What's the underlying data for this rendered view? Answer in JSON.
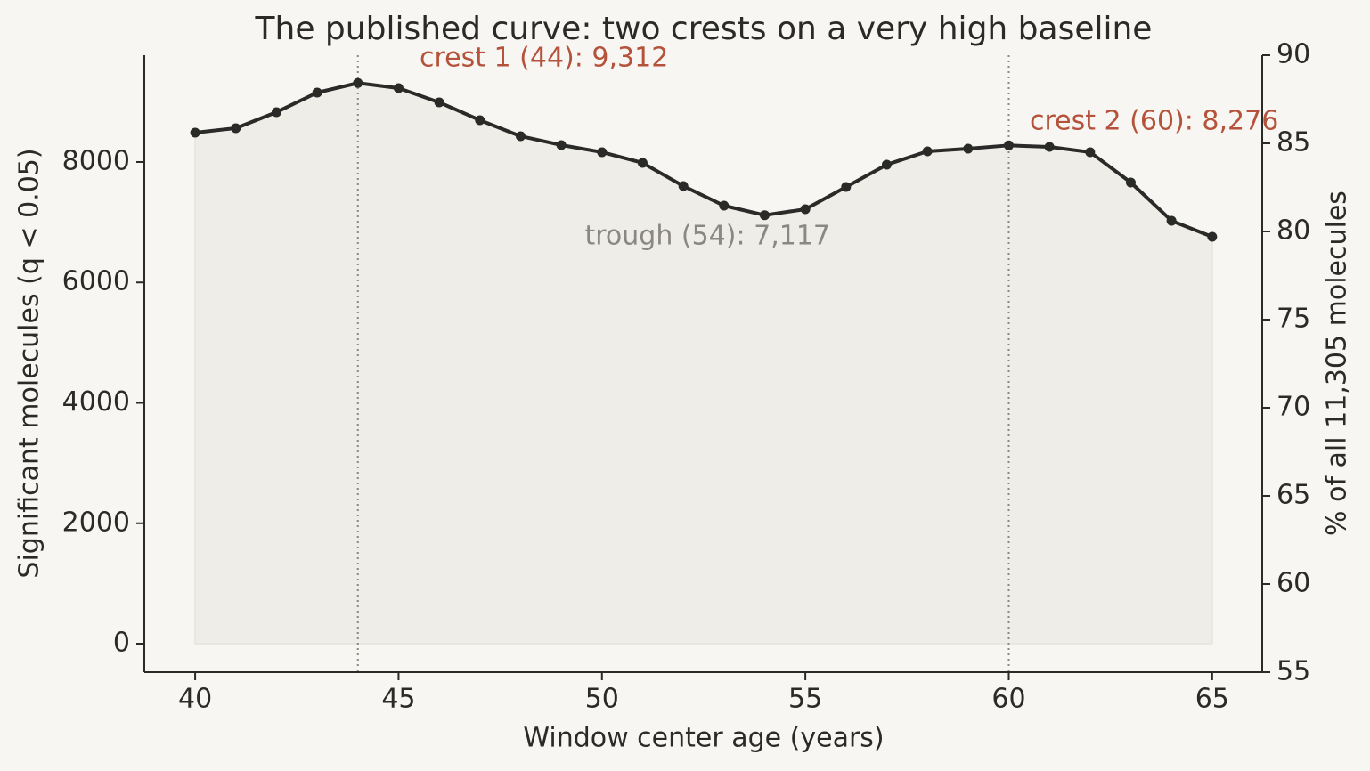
{
  "chart_data": {
    "type": "line",
    "title": "The published curve: two crests on a very high baseline",
    "x_label": "Window center age (years)",
    "y_label": "Significant molecules (q < 0.05)",
    "y2_label": "% of all 11,305 molecules",
    "x": [
      40,
      41,
      42,
      43,
      44,
      45,
      46,
      47,
      48,
      49,
      50,
      51,
      52,
      53,
      54,
      55,
      56,
      57,
      58,
      59,
      60,
      61,
      62,
      63,
      64,
      65
    ],
    "series": [
      {
        "color": "#2a2a28",
        "values": [
          8488,
          8562,
          8828,
          9153,
          9312,
          9227,
          8991,
          8695,
          8429,
          8281,
          8163,
          7985,
          7601,
          7275,
          7117,
          7216,
          7586,
          7956,
          8177,
          8222,
          8276,
          8251,
          8163,
          7660,
          7024,
          6758
        ]
      }
    ],
    "fill_color": "#eeede8",
    "xlim": [
      38.75,
      66.23
    ],
    "xticks": [
      40,
      45,
      50,
      55,
      60,
      65
    ],
    "ylim": [
      -473,
      9774
    ],
    "yticks": [
      0,
      2000,
      4000,
      6000,
      8000
    ],
    "y2lim": [
      55,
      90
    ],
    "y2ticks": [
      55,
      60,
      65,
      70,
      75,
      80,
      85,
      90
    ],
    "vlines": [
      44,
      60
    ],
    "annotations": [
      {
        "text": "crest 1 (44): 9,312",
        "color": "#b5523b"
      },
      {
        "text": "crest 2 (60): 8,276",
        "color": "#b5523b"
      },
      {
        "text": "trough (54): 7,117",
        "color": "#8a8880"
      }
    ]
  }
}
